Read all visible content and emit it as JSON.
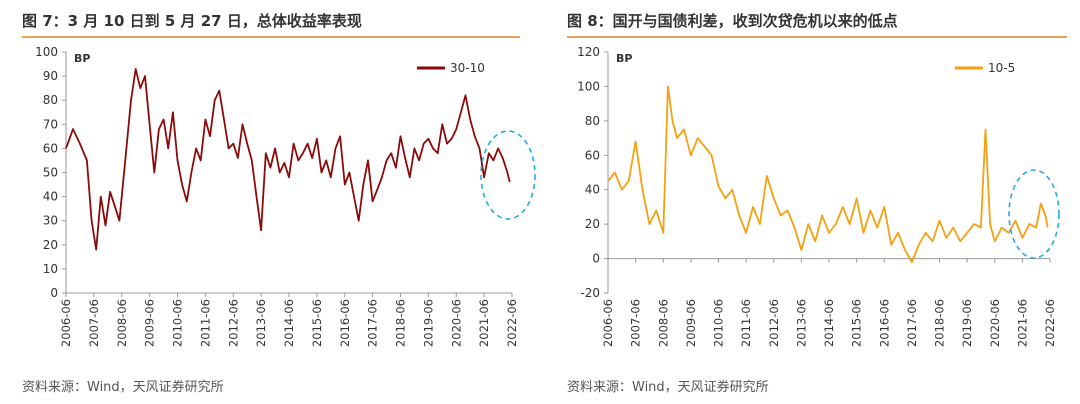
{
  "figures": [
    {
      "title": "图 7：3 月 10 日到 5 月 27 日，总体收益率表现",
      "source": "资料来源：Wind，天风证券研究所",
      "chart_data": {
        "type": "line",
        "unit_label": "BP",
        "ylim": [
          0,
          100
        ],
        "yticks": [
          0,
          10,
          20,
          30,
          40,
          50,
          60,
          70,
          80,
          90,
          100
        ],
        "xticks": [
          "2006-06",
          "2007-06",
          "2008-06",
          "2009-06",
          "2010-06",
          "2011-06",
          "2012-06",
          "2013-06",
          "2014-06",
          "2015-06",
          "2016-06",
          "2017-06",
          "2018-06",
          "2019-06",
          "2020-06",
          "2021-06",
          "2022-06"
        ],
        "x_start": "2006-06",
        "x_end": "2022-06",
        "legend_position": "top-right",
        "annotation": "dashed-ellipse-highlight",
        "series": [
          {
            "name": "30-10",
            "color": "#8b0a0a",
            "x": [
              "2006-06",
              "2006-09",
              "2006-12",
              "2007-03",
              "2007-05",
              "2007-07",
              "2007-09",
              "2007-11",
              "2008-01",
              "2008-03",
              "2008-05",
              "2008-08",
              "2008-10",
              "2008-12",
              "2009-02",
              "2009-04",
              "2009-06",
              "2009-08",
              "2009-10",
              "2009-12",
              "2010-02",
              "2010-04",
              "2010-06",
              "2010-08",
              "2010-10",
              "2010-12",
              "2011-02",
              "2011-04",
              "2011-06",
              "2011-08",
              "2011-10",
              "2011-12",
              "2012-02",
              "2012-04",
              "2012-06",
              "2012-08",
              "2012-10",
              "2012-12",
              "2013-02",
              "2013-04",
              "2013-06",
              "2013-08",
              "2013-10",
              "2013-12",
              "2014-02",
              "2014-04",
              "2014-06",
              "2014-08",
              "2014-10",
              "2014-12",
              "2015-02",
              "2015-04",
              "2015-06",
              "2015-08",
              "2015-10",
              "2015-12",
              "2016-02",
              "2016-04",
              "2016-06",
              "2016-08",
              "2016-10",
              "2016-12",
              "2017-02",
              "2017-04",
              "2017-06",
              "2017-08",
              "2017-10",
              "2017-12",
              "2018-02",
              "2018-04",
              "2018-06",
              "2018-08",
              "2018-10",
              "2018-12",
              "2019-02",
              "2019-04",
              "2019-06",
              "2019-08",
              "2019-10",
              "2019-12",
              "2020-02",
              "2020-04",
              "2020-06",
              "2020-08",
              "2020-10",
              "2020-12",
              "2021-02",
              "2021-04",
              "2021-06",
              "2021-08",
              "2021-10",
              "2021-12",
              "2022-02",
              "2022-04",
              "2022-05"
            ],
            "values": [
              60,
              68,
              62,
              55,
              30,
              18,
              40,
              28,
              42,
              36,
              30,
              60,
              80,
              93,
              85,
              90,
              70,
              50,
              68,
              72,
              60,
              75,
              55,
              45,
              38,
              50,
              60,
              55,
              72,
              65,
              80,
              84,
              72,
              60,
              62,
              56,
              70,
              62,
              55,
              40,
              26,
              58,
              52,
              60,
              50,
              54,
              48,
              62,
              55,
              58,
              62,
              56,
              64,
              50,
              55,
              48,
              60,
              65,
              45,
              50,
              40,
              30,
              45,
              55,
              38,
              43,
              48,
              55,
              58,
              52,
              65,
              56,
              48,
              60,
              55,
              62,
              64,
              60,
              58,
              70,
              62,
              64,
              68,
              75,
              82,
              72,
              65,
              60,
              48,
              58,
              55,
              60,
              56,
              50,
              46
            ]
          }
        ]
      }
    },
    {
      "title": "图 8：国开与国债利差，收到次贷危机以来的低点",
      "source": "资料来源：Wind，天风证券研究所",
      "chart_data": {
        "type": "line",
        "unit_label": "BP",
        "ylim": [
          -20,
          120
        ],
        "yticks": [
          -20,
          0,
          20,
          40,
          60,
          80,
          100,
          120
        ],
        "xticks": [
          "2006-06",
          "2007-06",
          "2008-06",
          "2009-06",
          "2010-06",
          "2011-06",
          "2012-06",
          "2013-06",
          "2014-06",
          "2015-06",
          "2016-06",
          "2017-06",
          "2018-06",
          "2019-06",
          "2020-06",
          "2021-06",
          "2022-06"
        ],
        "x_start": "2006-06",
        "x_end": "2022-06",
        "legend_position": "top-right",
        "annotation": "dashed-ellipse-highlight",
        "series": [
          {
            "name": "10-5",
            "color": "#f4a011",
            "x": [
              "2006-06",
              "2006-09",
              "2006-12",
              "2007-03",
              "2007-06",
              "2007-09",
              "2007-12",
              "2008-03",
              "2008-06",
              "2008-08",
              "2008-10",
              "2008-12",
              "2009-03",
              "2009-06",
              "2009-09",
              "2009-12",
              "2010-03",
              "2010-06",
              "2010-09",
              "2010-12",
              "2011-03",
              "2011-06",
              "2011-09",
              "2011-12",
              "2012-03",
              "2012-06",
              "2012-09",
              "2012-12",
              "2013-03",
              "2013-06",
              "2013-09",
              "2013-12",
              "2014-03",
              "2014-06",
              "2014-09",
              "2014-12",
              "2015-03",
              "2015-06",
              "2015-09",
              "2015-12",
              "2016-03",
              "2016-06",
              "2016-09",
              "2016-12",
              "2017-03",
              "2017-06",
              "2017-09",
              "2017-12",
              "2018-03",
              "2018-06",
              "2018-09",
              "2018-12",
              "2019-03",
              "2019-06",
              "2019-09",
              "2019-12",
              "2020-02",
              "2020-04",
              "2020-06",
              "2020-09",
              "2020-12",
              "2021-03",
              "2021-06",
              "2021-09",
              "2021-12",
              "2022-02",
              "2022-04",
              "2022-05"
            ],
            "values": [
              45,
              50,
              40,
              45,
              68,
              40,
              20,
              28,
              15,
              100,
              80,
              70,
              75,
              60,
              70,
              65,
              60,
              42,
              35,
              40,
              25,
              15,
              30,
              20,
              48,
              35,
              25,
              28,
              18,
              5,
              20,
              10,
              25,
              15,
              20,
              30,
              20,
              35,
              15,
              28,
              18,
              30,
              8,
              15,
              5,
              -2,
              8,
              15,
              10,
              22,
              12,
              18,
              10,
              15,
              20,
              18,
              75,
              20,
              10,
              18,
              15,
              22,
              12,
              20,
              18,
              32,
              25,
              18
            ]
          }
        ]
      }
    }
  ]
}
